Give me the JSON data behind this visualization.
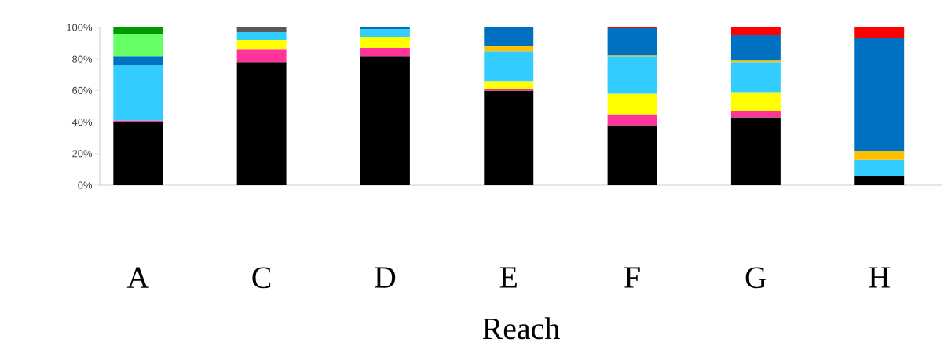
{
  "chart_data": {
    "type": "bar",
    "stacked": true,
    "xlabel": "Reach",
    "categories": [
      "A",
      "C",
      "D",
      "E",
      "F",
      "G",
      "H"
    ],
    "ylim": [
      0,
      100
    ],
    "yticks": [
      {
        "value": 0,
        "label": "0%"
      },
      {
        "value": 20,
        "label": "20%"
      },
      {
        "value": 40,
        "label": "40%"
      },
      {
        "value": 60,
        "label": "60%"
      },
      {
        "value": 80,
        "label": "80%"
      },
      {
        "value": 100,
        "label": "100%"
      }
    ],
    "grid": false,
    "series": [
      {
        "color": "#000000",
        "values": [
          40,
          78,
          82,
          60,
          38,
          43,
          6
        ]
      },
      {
        "color": "#ff3399",
        "values": [
          1,
          8,
          5,
          1,
          7,
          4,
          null
        ]
      },
      {
        "color": "#ffff00",
        "values": [
          null,
          6,
          7,
          5,
          13,
          12,
          null
        ]
      },
      {
        "color": "#33ccff",
        "values": [
          35,
          5,
          5,
          19,
          24,
          19,
          10
        ]
      },
      {
        "color": "#ffc000",
        "values": [
          null,
          null,
          null,
          3,
          0.5,
          1,
          5.5
        ]
      },
      {
        "color": "#0070c0",
        "values": [
          6,
          null,
          1,
          12,
          17,
          16,
          71.5
        ]
      },
      {
        "color": "#66ff66",
        "values": [
          14,
          null,
          null,
          null,
          null,
          null,
          null
        ]
      },
      {
        "color": "#009900",
        "values": [
          4,
          null,
          null,
          null,
          null,
          null,
          null
        ]
      },
      {
        "color": "#ff0000",
        "values": [
          null,
          null,
          null,
          null,
          0.5,
          5,
          7
        ]
      },
      {
        "color": "#595959",
        "values": [
          null,
          3,
          null,
          null,
          null,
          null,
          null
        ]
      }
    ]
  }
}
